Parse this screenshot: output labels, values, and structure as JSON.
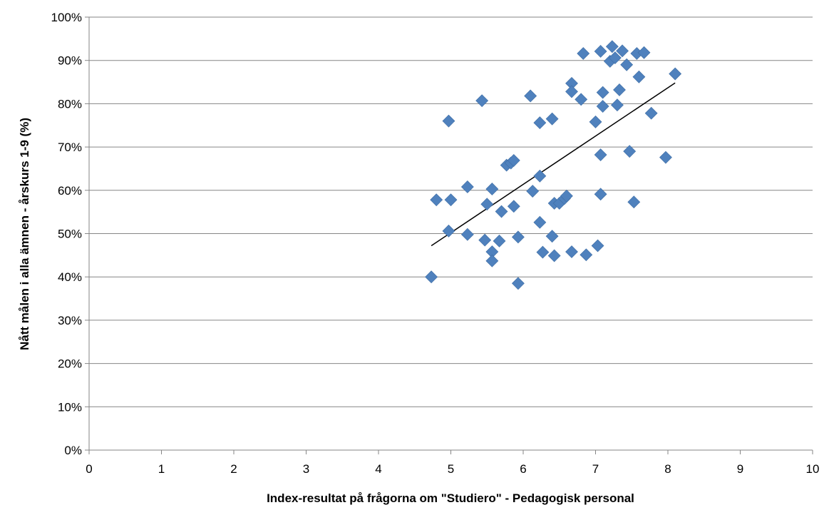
{
  "chart_data": {
    "type": "scatter",
    "title": "",
    "xlabel": "Index-resultat på frågorna om \"Studiero\" - Pedagogisk personal",
    "ylabel": "Nått målen i alla ämnen - årskurs 1-9 (%)",
    "xlim": [
      0,
      10
    ],
    "ylim": [
      0,
      100
    ],
    "x_ticks": [
      "0",
      "1",
      "2",
      "3",
      "4",
      "5",
      "6",
      "7",
      "8",
      "9",
      "10"
    ],
    "y_ticks": [
      "0%",
      "10%",
      "20%",
      "30%",
      "40%",
      "50%",
      "60%",
      "70%",
      "80%",
      "90%",
      "100%"
    ],
    "grid": "horizontal",
    "legend": "none",
    "marker": "diamond",
    "marker_color": "#4F81BD",
    "trendline": {
      "type": "linear",
      "x": [
        4.73,
        8.1
      ],
      "y": [
        47.2,
        84.8
      ],
      "color": "#000000"
    },
    "points": [
      {
        "x": 4.73,
        "y": 40.0
      },
      {
        "x": 4.8,
        "y": 57.8
      },
      {
        "x": 4.97,
        "y": 76.0
      },
      {
        "x": 4.97,
        "y": 50.6
      },
      {
        "x": 5.0,
        "y": 57.8
      },
      {
        "x": 5.23,
        "y": 60.8
      },
      {
        "x": 5.23,
        "y": 49.8
      },
      {
        "x": 5.43,
        "y": 80.7
      },
      {
        "x": 5.47,
        "y": 48.5
      },
      {
        "x": 5.5,
        "y": 56.8
      },
      {
        "x": 5.57,
        "y": 45.8
      },
      {
        "x": 5.57,
        "y": 43.7
      },
      {
        "x": 5.57,
        "y": 60.3
      },
      {
        "x": 5.67,
        "y": 48.3
      },
      {
        "x": 5.7,
        "y": 55.1
      },
      {
        "x": 5.77,
        "y": 65.8
      },
      {
        "x": 5.83,
        "y": 66.3
      },
      {
        "x": 5.87,
        "y": 66.9
      },
      {
        "x": 5.87,
        "y": 56.3
      },
      {
        "x": 5.93,
        "y": 49.2
      },
      {
        "x": 5.93,
        "y": 38.5
      },
      {
        "x": 6.1,
        "y": 81.8
      },
      {
        "x": 6.13,
        "y": 59.8
      },
      {
        "x": 6.23,
        "y": 75.6
      },
      {
        "x": 6.23,
        "y": 63.3
      },
      {
        "x": 6.23,
        "y": 52.6
      },
      {
        "x": 6.27,
        "y": 45.7
      },
      {
        "x": 6.4,
        "y": 76.5
      },
      {
        "x": 6.4,
        "y": 49.4
      },
      {
        "x": 6.43,
        "y": 57.0
      },
      {
        "x": 6.43,
        "y": 44.9
      },
      {
        "x": 6.5,
        "y": 57.0
      },
      {
        "x": 6.57,
        "y": 58.1
      },
      {
        "x": 6.6,
        "y": 58.7
      },
      {
        "x": 6.67,
        "y": 84.7
      },
      {
        "x": 6.67,
        "y": 82.8
      },
      {
        "x": 6.67,
        "y": 45.8
      },
      {
        "x": 6.8,
        "y": 81.0
      },
      {
        "x": 6.83,
        "y": 91.6
      },
      {
        "x": 6.87,
        "y": 45.1
      },
      {
        "x": 7.0,
        "y": 75.8
      },
      {
        "x": 7.03,
        "y": 47.2
      },
      {
        "x": 7.07,
        "y": 92.1
      },
      {
        "x": 7.07,
        "y": 68.2
      },
      {
        "x": 7.07,
        "y": 59.1
      },
      {
        "x": 7.1,
        "y": 82.6
      },
      {
        "x": 7.1,
        "y": 79.4
      },
      {
        "x": 7.2,
        "y": 89.8
      },
      {
        "x": 7.23,
        "y": 93.2
      },
      {
        "x": 7.27,
        "y": 90.6
      },
      {
        "x": 7.3,
        "y": 79.7
      },
      {
        "x": 7.33,
        "y": 83.2
      },
      {
        "x": 7.37,
        "y": 92.2
      },
      {
        "x": 7.43,
        "y": 89.0
      },
      {
        "x": 7.47,
        "y": 69.0
      },
      {
        "x": 7.53,
        "y": 57.3
      },
      {
        "x": 7.57,
        "y": 91.6
      },
      {
        "x": 7.6,
        "y": 86.2
      },
      {
        "x": 7.67,
        "y": 91.8
      },
      {
        "x": 7.77,
        "y": 77.8
      },
      {
        "x": 7.97,
        "y": 67.6
      },
      {
        "x": 8.1,
        "y": 86.9
      }
    ]
  }
}
